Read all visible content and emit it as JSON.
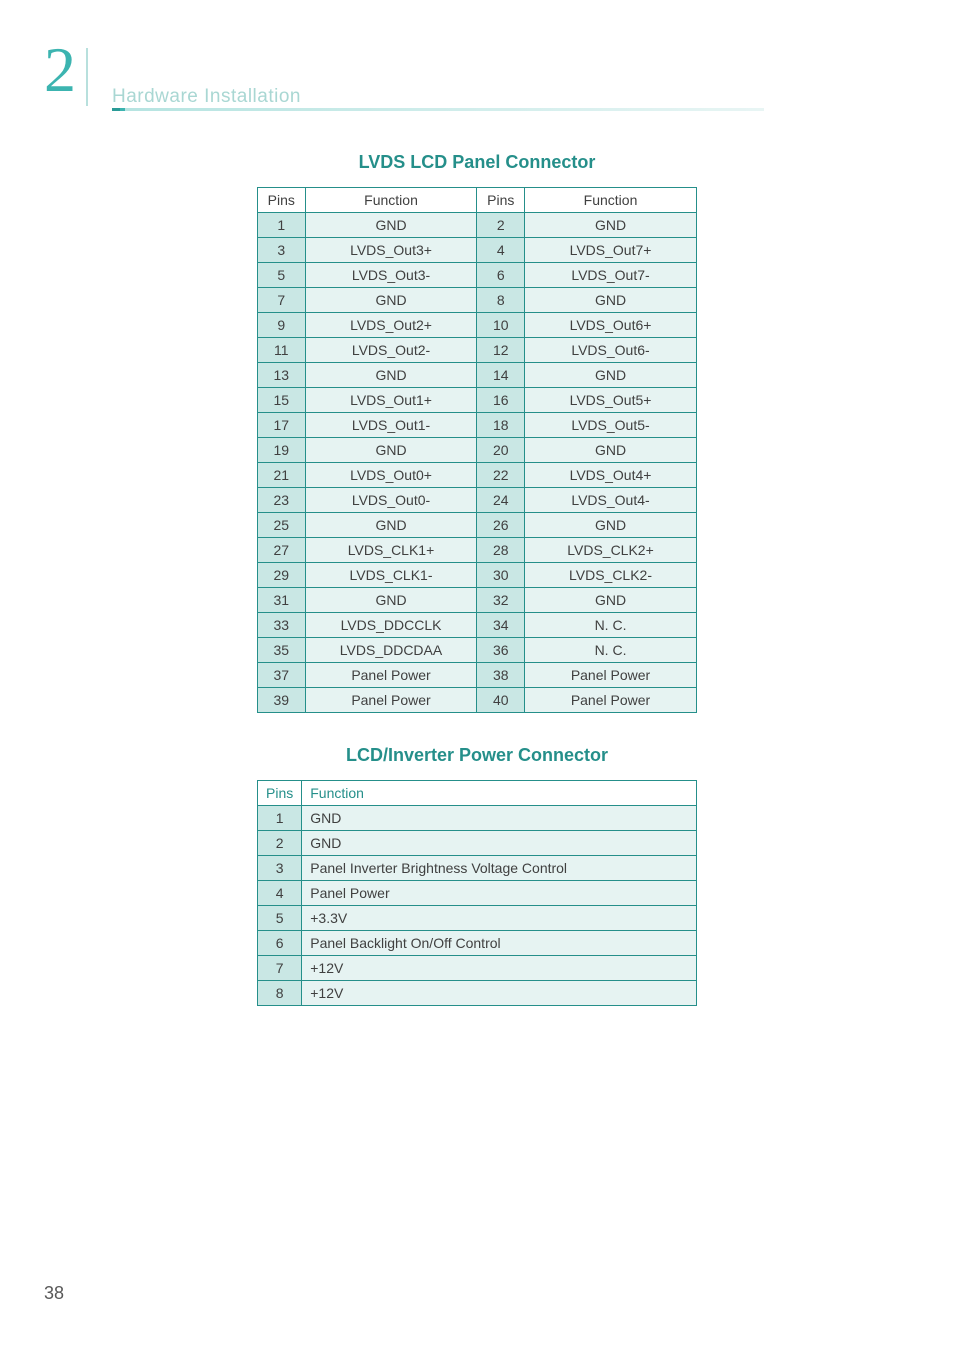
{
  "header": {
    "chapter_number": "2",
    "section_title": "Hardware Installation"
  },
  "colors": {
    "teal_primary": "#258f8a",
    "teal_light": "#3cb4b0",
    "teal_pale": "#a9d7d3",
    "header_cell_bg": "#c9e7e4",
    "body_cell_bg": "#e6f3f2",
    "text_body": "#404040",
    "page_bg": "#ffffff"
  },
  "lvds_table": {
    "heading": "LVDS LCD Panel Connector",
    "columns": [
      "Pins",
      "Function",
      "Pins",
      "Function"
    ],
    "rows": [
      [
        "1",
        "GND",
        "2",
        "GND"
      ],
      [
        "3",
        "LVDS_Out3+",
        "4",
        "LVDS_Out7+"
      ],
      [
        "5",
        "LVDS_Out3-",
        "6",
        "LVDS_Out7-"
      ],
      [
        "7",
        "GND",
        "8",
        "GND"
      ],
      [
        "9",
        "LVDS_Out2+",
        "10",
        "LVDS_Out6+"
      ],
      [
        "11",
        "LVDS_Out2-",
        "12",
        "LVDS_Out6-"
      ],
      [
        "13",
        "GND",
        "14",
        "GND"
      ],
      [
        "15",
        "LVDS_Out1+",
        "16",
        "LVDS_Out5+"
      ],
      [
        "17",
        "LVDS_Out1-",
        "18",
        "LVDS_Out5-"
      ],
      [
        "19",
        "GND",
        "20",
        "GND"
      ],
      [
        "21",
        "LVDS_Out0+",
        "22",
        "LVDS_Out4+"
      ],
      [
        "23",
        "LVDS_Out0-",
        "24",
        "LVDS_Out4-"
      ],
      [
        "25",
        "GND",
        "26",
        "GND"
      ],
      [
        "27",
        "LVDS_CLK1+",
        "28",
        "LVDS_CLK2+"
      ],
      [
        "29",
        "LVDS_CLK1-",
        "30",
        "LVDS_CLK2-"
      ],
      [
        "31",
        "GND",
        "32",
        "GND"
      ],
      [
        "33",
        "LVDS_DDCCLK",
        "34",
        "N. C."
      ],
      [
        "35",
        "LVDS_DDCDAA",
        "36",
        "N. C."
      ],
      [
        "37",
        "Panel Power",
        "38",
        "Panel Power"
      ],
      [
        "39",
        "Panel Power",
        "40",
        "Panel Power"
      ]
    ]
  },
  "power_table": {
    "heading": "LCD/Inverter Power Connector",
    "columns": [
      "Pins",
      "Function"
    ],
    "rows": [
      [
        "1",
        "GND"
      ],
      [
        "2",
        "GND"
      ],
      [
        "3",
        "Panel Inverter Brightness Voltage Control"
      ],
      [
        "4",
        "Panel Power"
      ],
      [
        "5",
        "+3.3V"
      ],
      [
        "6",
        "Panel Backlight On/Off Control"
      ],
      [
        "7",
        "+12V"
      ],
      [
        "8",
        "+12V"
      ]
    ]
  },
  "page_number": "38"
}
